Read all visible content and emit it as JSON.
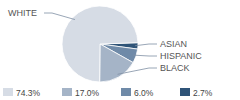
{
  "chart_data": {
    "type": "pie",
    "categories": [
      "WHITE",
      "BLACK",
      "HISPANIC",
      "ASIAN"
    ],
    "values": [
      74.3,
      17.0,
      6.0,
      2.7
    ],
    "value_labels": [
      "74.3%",
      "17.0%",
      "6.0%",
      "2.7%"
    ],
    "colors": [
      "#d6dce5",
      "#a5b4c7",
      "#6f8aa8",
      "#2f5478"
    ],
    "legend": "bottom"
  }
}
